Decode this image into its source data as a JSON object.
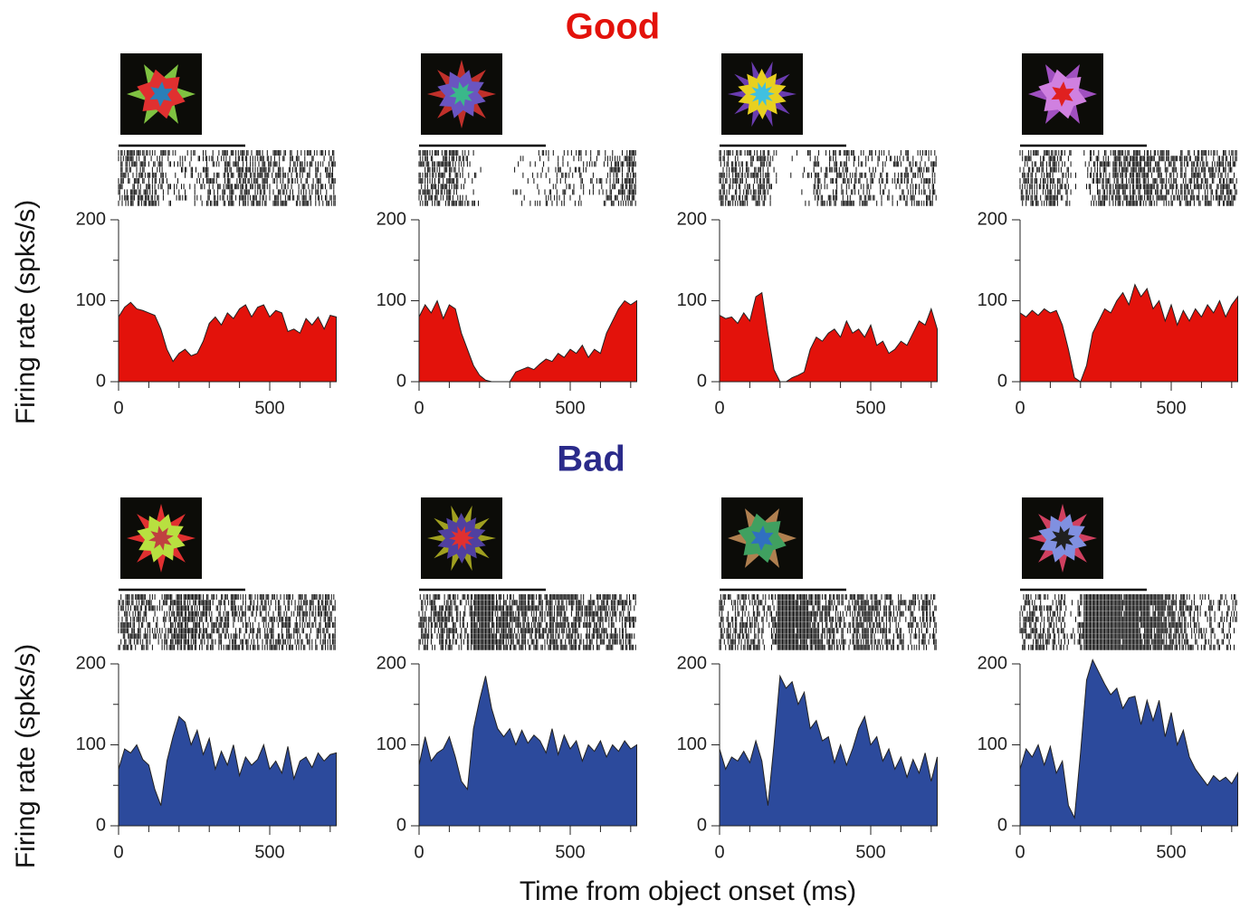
{
  "figure": {
    "groups": [
      {
        "title": "Good",
        "y_label": "Firing rate (spks/s)"
      },
      {
        "title": "Bad",
        "y_label": "Firing rate (spks/s)"
      }
    ],
    "x_label": "Time from object onset (ms)"
  },
  "chart_data": [
    {
      "type": "area",
      "color": "#e3120b",
      "x": [
        0,
        20,
        40,
        60,
        80,
        100,
        120,
        140,
        160,
        180,
        200,
        220,
        240,
        260,
        280,
        300,
        320,
        340,
        360,
        380,
        400,
        420,
        440,
        460,
        480,
        500,
        520,
        540,
        560,
        580,
        600,
        620,
        640,
        660,
        680,
        700,
        720
      ],
      "values": [
        80,
        92,
        98,
        90,
        88,
        85,
        82,
        65,
        40,
        25,
        35,
        40,
        32,
        35,
        50,
        72,
        80,
        70,
        85,
        78,
        90,
        95,
        80,
        92,
        95,
        80,
        88,
        85,
        62,
        65,
        60,
        78,
        70,
        80,
        65,
        82,
        80
      ],
      "xlim": [
        0,
        720
      ],
      "ylim": [
        0,
        200
      ],
      "xticks": [
        0,
        500
      ],
      "x_minor_ticks": [
        100,
        200,
        300,
        400,
        600,
        700
      ],
      "yticks": [
        0,
        100,
        200
      ],
      "y_minor_ticks": [
        50,
        150
      ]
    },
    {
      "type": "area",
      "color": "#e3120b",
      "x": [
        0,
        20,
        40,
        60,
        80,
        100,
        120,
        140,
        160,
        180,
        200,
        220,
        240,
        260,
        280,
        300,
        320,
        340,
        360,
        380,
        400,
        420,
        440,
        460,
        480,
        500,
        520,
        540,
        560,
        580,
        600,
        620,
        640,
        660,
        680,
        700,
        720
      ],
      "values": [
        80,
        95,
        85,
        100,
        78,
        95,
        90,
        60,
        40,
        20,
        8,
        2,
        0,
        0,
        0,
        0,
        12,
        15,
        18,
        15,
        22,
        28,
        25,
        35,
        30,
        40,
        35,
        45,
        30,
        40,
        35,
        60,
        75,
        90,
        100,
        95,
        100
      ],
      "xlim": [
        0,
        720
      ],
      "ylim": [
        0,
        200
      ],
      "xticks": [
        0,
        500
      ],
      "x_minor_ticks": [
        100,
        200,
        300,
        400,
        600,
        700
      ],
      "yticks": [
        0,
        100,
        200
      ],
      "y_minor_ticks": [
        50,
        150
      ]
    },
    {
      "type": "area",
      "color": "#e3120b",
      "x": [
        0,
        20,
        40,
        60,
        80,
        100,
        120,
        140,
        160,
        180,
        200,
        220,
        240,
        260,
        280,
        300,
        320,
        340,
        360,
        380,
        400,
        420,
        440,
        460,
        480,
        500,
        520,
        540,
        560,
        580,
        600,
        620,
        640,
        660,
        680,
        700,
        720
      ],
      "values": [
        82,
        78,
        80,
        72,
        85,
        75,
        105,
        110,
        60,
        15,
        0,
        0,
        5,
        8,
        12,
        40,
        55,
        50,
        60,
        65,
        55,
        75,
        60,
        65,
        55,
        70,
        45,
        50,
        35,
        40,
        50,
        45,
        60,
        75,
        70,
        90,
        65
      ],
      "xlim": [
        0,
        720
      ],
      "ylim": [
        0,
        200
      ],
      "xticks": [
        0,
        500
      ],
      "x_minor_ticks": [
        100,
        200,
        300,
        400,
        600,
        700
      ],
      "yticks": [
        0,
        100,
        200
      ],
      "y_minor_ticks": [
        50,
        150
      ]
    },
    {
      "type": "area",
      "color": "#e3120b",
      "x": [
        0,
        20,
        40,
        60,
        80,
        100,
        120,
        140,
        160,
        180,
        200,
        220,
        240,
        260,
        280,
        300,
        320,
        340,
        360,
        380,
        400,
        420,
        440,
        460,
        480,
        500,
        520,
        540,
        560,
        580,
        600,
        620,
        640,
        660,
        680,
        700,
        720
      ],
      "values": [
        85,
        80,
        88,
        82,
        90,
        85,
        88,
        70,
        40,
        5,
        0,
        20,
        60,
        75,
        90,
        85,
        100,
        110,
        95,
        120,
        105,
        115,
        90,
        100,
        75,
        95,
        70,
        88,
        75,
        90,
        80,
        95,
        85,
        100,
        80,
        95,
        105
      ],
      "xlim": [
        0,
        720
      ],
      "ylim": [
        0,
        200
      ],
      "xticks": [
        0,
        500
      ],
      "x_minor_ticks": [
        100,
        200,
        300,
        400,
        600,
        700
      ],
      "yticks": [
        0,
        100,
        200
      ],
      "y_minor_ticks": [
        50,
        150
      ]
    },
    {
      "type": "area",
      "color": "#2c4a9c",
      "x": [
        0,
        20,
        40,
        60,
        80,
        100,
        120,
        140,
        160,
        180,
        200,
        220,
        240,
        260,
        280,
        300,
        320,
        340,
        360,
        380,
        400,
        420,
        440,
        460,
        480,
        500,
        520,
        540,
        560,
        580,
        600,
        620,
        640,
        660,
        680,
        700,
        720
      ],
      "values": [
        70,
        95,
        90,
        100,
        82,
        75,
        45,
        25,
        80,
        110,
        135,
        128,
        100,
        118,
        88,
        108,
        70,
        92,
        75,
        100,
        62,
        85,
        75,
        82,
        100,
        70,
        80,
        65,
        98,
        58,
        80,
        85,
        72,
        90,
        80,
        88,
        90
      ],
      "xlim": [
        0,
        720
      ],
      "ylim": [
        0,
        200
      ],
      "xticks": [
        0,
        500
      ],
      "x_minor_ticks": [
        100,
        200,
        300,
        400,
        600,
        700
      ],
      "yticks": [
        0,
        100,
        200
      ],
      "y_minor_ticks": [
        50,
        150
      ]
    },
    {
      "type": "area",
      "color": "#2c4a9c",
      "x": [
        0,
        20,
        40,
        60,
        80,
        100,
        120,
        140,
        160,
        180,
        200,
        220,
        240,
        260,
        280,
        300,
        320,
        340,
        360,
        380,
        400,
        420,
        440,
        460,
        480,
        500,
        520,
        540,
        560,
        580,
        600,
        620,
        640,
        660,
        680,
        700,
        720
      ],
      "values": [
        75,
        110,
        80,
        90,
        95,
        110,
        85,
        55,
        45,
        120,
        155,
        185,
        145,
        120,
        110,
        120,
        100,
        118,
        102,
        112,
        105,
        90,
        120,
        88,
        112,
        95,
        105,
        80,
        100,
        92,
        105,
        85,
        100,
        92,
        105,
        95,
        100
      ],
      "xlim": [
        0,
        720
      ],
      "ylim": [
        0,
        200
      ],
      "xticks": [
        0,
        500
      ],
      "x_minor_ticks": [
        100,
        200,
        300,
        400,
        600,
        700
      ],
      "yticks": [
        0,
        100,
        200
      ],
      "y_minor_ticks": [
        50,
        150
      ]
    },
    {
      "type": "area",
      "color": "#2c4a9c",
      "x": [
        0,
        20,
        40,
        60,
        80,
        100,
        120,
        140,
        160,
        180,
        200,
        220,
        240,
        260,
        280,
        300,
        320,
        340,
        360,
        380,
        400,
        420,
        440,
        460,
        480,
        500,
        520,
        540,
        560,
        580,
        600,
        620,
        640,
        660,
        680,
        700,
        720
      ],
      "values": [
        95,
        70,
        85,
        80,
        92,
        78,
        105,
        80,
        25,
        100,
        185,
        170,
        178,
        150,
        165,
        120,
        130,
        105,
        110,
        78,
        100,
        75,
        95,
        120,
        135,
        100,
        110,
        80,
        95,
        70,
        85,
        60,
        82,
        65,
        90,
        55,
        85
      ],
      "xlim": [
        0,
        720
      ],
      "ylim": [
        0,
        200
      ],
      "xticks": [
        0,
        500
      ],
      "x_minor_ticks": [
        100,
        200,
        300,
        400,
        600,
        700
      ],
      "yticks": [
        0,
        100,
        200
      ],
      "y_minor_ticks": [
        50,
        150
      ]
    },
    {
      "type": "area",
      "color": "#2c4a9c",
      "x": [
        0,
        20,
        40,
        60,
        80,
        100,
        120,
        140,
        160,
        180,
        200,
        220,
        240,
        260,
        280,
        300,
        320,
        340,
        360,
        380,
        400,
        420,
        440,
        460,
        480,
        500,
        520,
        540,
        560,
        580,
        600,
        620,
        640,
        660,
        680,
        700,
        720
      ],
      "values": [
        70,
        95,
        85,
        100,
        75,
        98,
        65,
        80,
        25,
        10,
        90,
        180,
        205,
        190,
        175,
        162,
        170,
        145,
        158,
        160,
        125,
        155,
        130,
        155,
        110,
        140,
        100,
        118,
        85,
        70,
        60,
        50,
        62,
        55,
        60,
        52,
        65
      ],
      "xlim": [
        0,
        720
      ],
      "ylim": [
        0,
        210
      ],
      "xticks": [
        0,
        500
      ],
      "x_minor_ticks": [
        100,
        200,
        300,
        400,
        600,
        700
      ],
      "yticks": [
        0,
        100,
        200
      ],
      "y_minor_ticks": [
        50,
        150
      ]
    }
  ]
}
